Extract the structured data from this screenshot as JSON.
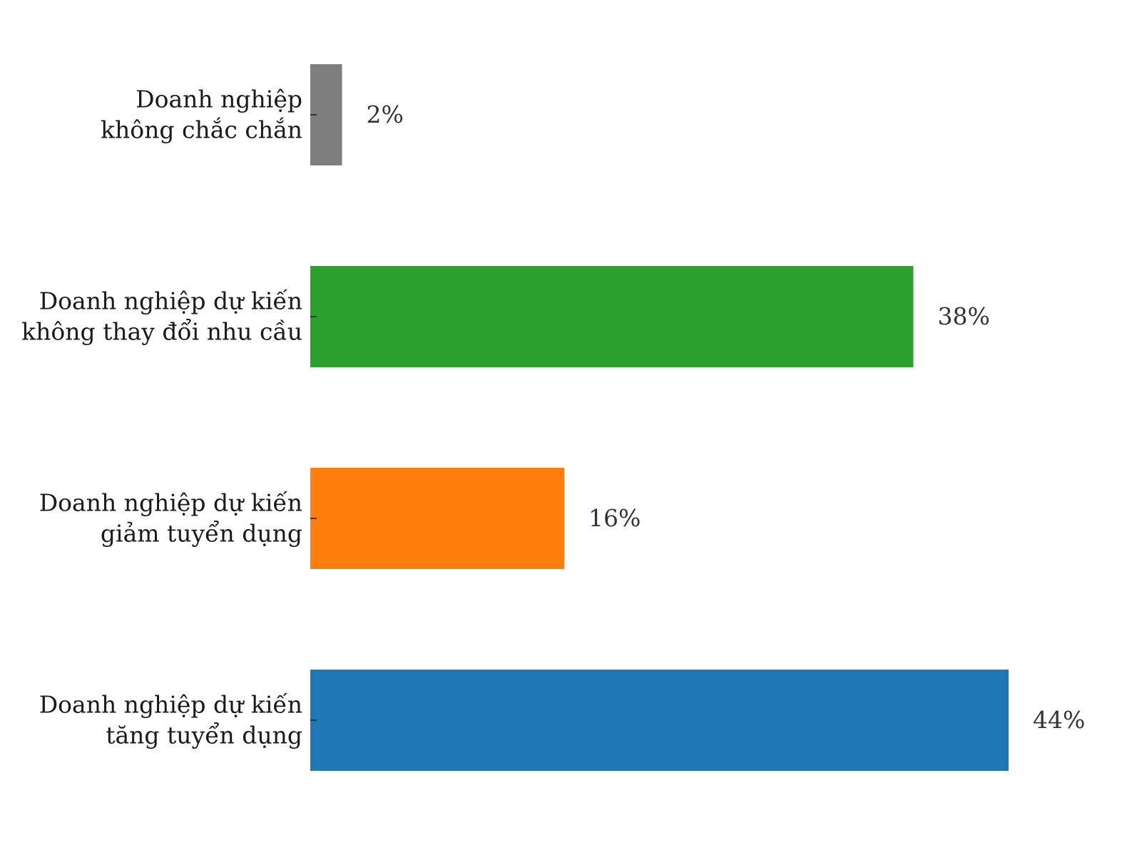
{
  "chart_data": {
    "type": "bar",
    "orientation": "horizontal",
    "categories": [
      [
        "Doanh nghiệp",
        "không chắc chắn"
      ],
      [
        "Doanh nghiệp dự kiến",
        "không thay đổi nhu cầu"
      ],
      [
        "Doanh nghiệp dự kiến",
        "giảm tuyển dụng"
      ],
      [
        "Doanh nghiệp dự kiến",
        "tăng tuyển dụng"
      ]
    ],
    "values": [
      2,
      38,
      16,
      44
    ],
    "value_labels": [
      "2%",
      "38%",
      "16%",
      "44%"
    ],
    "colors": [
      "#7f7f7f",
      "#2ca02c",
      "#ff7f0e",
      "#1f77b4"
    ],
    "xlim": [
      0,
      44
    ],
    "title": "",
    "xlabel": "",
    "ylabel": "",
    "grid": false,
    "legend": "none"
  }
}
